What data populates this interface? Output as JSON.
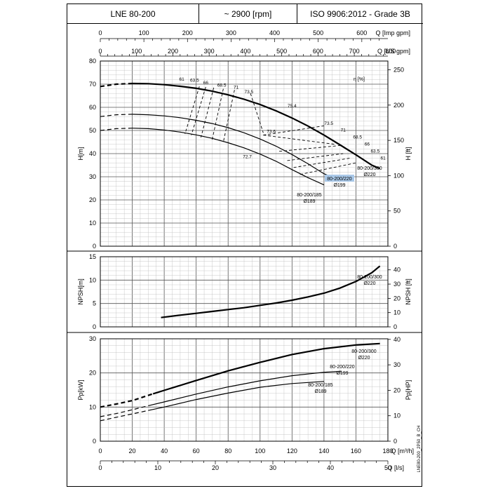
{
  "header": {
    "model": "LNE 80-200",
    "speed": "~ 2900 [rpm]",
    "standard": "ISO 9906:2012 - Grade 3B"
  },
  "doc_code": "LNE80-200_2P50_B_CH",
  "colors": {
    "line": "#000000",
    "grid_minor": "#bdbdbd",
    "grid_major": "#000000",
    "highlight": "#a9c8e8"
  },
  "chart_data": [
    {
      "type": "line",
      "id": "head",
      "ylabel": "H[m]",
      "ylabel_right": "H [ft]",
      "xlabel_top1": "Q [Imp gpm]",
      "xlabel_top2": "Q [US gpm]",
      "ylim": [
        0,
        80
      ],
      "xlim": [
        0,
        180
      ],
      "yticks": [
        0,
        10,
        20,
        30,
        40,
        50,
        60,
        70,
        80
      ],
      "yticks_right": [
        0,
        50,
        100,
        150,
        200,
        250
      ],
      "xticks_top1": [
        0,
        100,
        200,
        300,
        400,
        500,
        600
      ],
      "xticks_top2": [
        0,
        100,
        200,
        300,
        400,
        500,
        600,
        700,
        800
      ],
      "series": [
        {
          "name": "80-200/300 Ø220",
          "dashed_until": 20,
          "x": [
            0,
            10,
            20,
            30,
            40,
            50,
            60,
            70,
            80,
            90,
            100,
            110,
            120,
            130,
            140,
            150,
            160,
            170,
            175
          ],
          "y": [
            69,
            70,
            70.3,
            70.2,
            69.8,
            69.1,
            68.2,
            67.0,
            65.4,
            63.5,
            61.2,
            58.5,
            55.4,
            51.9,
            48.0,
            43.8,
            39.5,
            35.0,
            33.5
          ]
        },
        {
          "name": "80-200/220 Ø199",
          "dashed_until": 20,
          "x": [
            0,
            10,
            20,
            30,
            40,
            50,
            60,
            70,
            80,
            90,
            100,
            110,
            120,
            130,
            140,
            150,
            151
          ],
          "y": [
            56,
            56.8,
            57.0,
            56.8,
            56.3,
            55.5,
            54.4,
            53.0,
            51.2,
            49.0,
            46.3,
            43.2,
            39.6,
            35.6,
            31.3,
            28.5,
            28.2
          ]
        },
        {
          "name": "80-200/185 Ø189",
          "dashed_until": 20,
          "x": [
            0,
            10,
            20,
            30,
            40,
            50,
            60,
            70,
            80,
            90,
            100,
            110,
            120,
            130,
            140
          ],
          "y": [
            50,
            50.8,
            51.0,
            50.8,
            50.2,
            49.3,
            48.1,
            46.6,
            44.7,
            42.5,
            39.8,
            36.7,
            33.1,
            29.6,
            26.5
          ]
        }
      ],
      "efficiency_label": "η [%]",
      "efficiency_values": [
        "61",
        "63.5",
        "66",
        "68.5",
        "71",
        "73.5",
        "75.4",
        "73.6",
        "72.7",
        "73.5",
        "71",
        "68.5",
        "66",
        "63.5",
        "61"
      ],
      "labels": [
        {
          "text": "80-200/300",
          "text2": "Ø220"
        },
        {
          "text": "80-200/220",
          "text2": "Ø199",
          "highlight": true
        },
        {
          "text": "80-200/185",
          "text2": "Ø189"
        }
      ]
    },
    {
      "type": "line",
      "id": "npsh",
      "ylabel": "NPSH[m]",
      "ylabel_right": "NPSH [ft]",
      "ylim": [
        0,
        15
      ],
      "yticks": [
        0,
        5,
        10,
        15
      ],
      "yticks_right": [
        0,
        10,
        20,
        30,
        40
      ],
      "series": [
        {
          "name": "80-200/300 Ø220",
          "x": [
            38,
            50,
            60,
            70,
            80,
            90,
            100,
            110,
            120,
            130,
            140,
            150,
            160,
            170,
            175
          ],
          "y": [
            2.0,
            2.5,
            2.9,
            3.3,
            3.7,
            4.1,
            4.6,
            5.1,
            5.7,
            6.4,
            7.2,
            8.3,
            9.7,
            11.6,
            13.0
          ]
        }
      ],
      "labels": [
        {
          "text": "80-200/300",
          "text2": "Ø220"
        }
      ]
    },
    {
      "type": "line",
      "id": "power",
      "ylabel": "Pp[kW]",
      "ylabel_right": "Pp[HP]",
      "xlabel": "Q [m³/h]",
      "xlabel2": "Q [l/s]",
      "ylim": [
        0,
        30
      ],
      "xlim": [
        0,
        180
      ],
      "yticks": [
        0,
        10,
        20,
        30
      ],
      "yticks_right": [
        0,
        10,
        20,
        30,
        40
      ],
      "xticks": [
        0,
        20,
        40,
        60,
        80,
        100,
        120,
        140,
        160,
        180
      ],
      "xticks2": [
        0,
        10,
        20,
        30,
        40,
        50
      ],
      "series": [
        {
          "name": "80-200/300 Ø220",
          "dashed_until": 33,
          "x": [
            0,
            10,
            20,
            33,
            40,
            60,
            80,
            100,
            120,
            140,
            160,
            175
          ],
          "y": [
            10.0,
            10.9,
            11.9,
            13.9,
            14.9,
            17.8,
            20.6,
            23.1,
            25.4,
            27.1,
            28.2,
            28.6
          ]
        },
        {
          "name": "80-200/220 Ø199",
          "dashed_until": 30,
          "x": [
            0,
            10,
            20,
            30,
            40,
            60,
            80,
            100,
            120,
            140,
            151
          ],
          "y": [
            7.2,
            8.1,
            9.2,
            10.4,
            11.5,
            13.8,
            15.9,
            17.7,
            19.2,
            20.2,
            20.5
          ]
        },
        {
          "name": "80-200/185 Ø189",
          "dashed_until": 30,
          "x": [
            0,
            10,
            20,
            30,
            40,
            60,
            80,
            100,
            120,
            140
          ],
          "y": [
            6.0,
            7.0,
            8.0,
            9.0,
            10.0,
            12.2,
            14.1,
            15.8,
            16.9,
            17.5
          ]
        }
      ],
      "labels": [
        {
          "text": "80-200/300",
          "text2": "Ø220"
        },
        {
          "text": "80-200/220",
          "text2": "Ø199"
        },
        {
          "text": "80-200/185",
          "text2": "Ø189"
        }
      ]
    }
  ]
}
